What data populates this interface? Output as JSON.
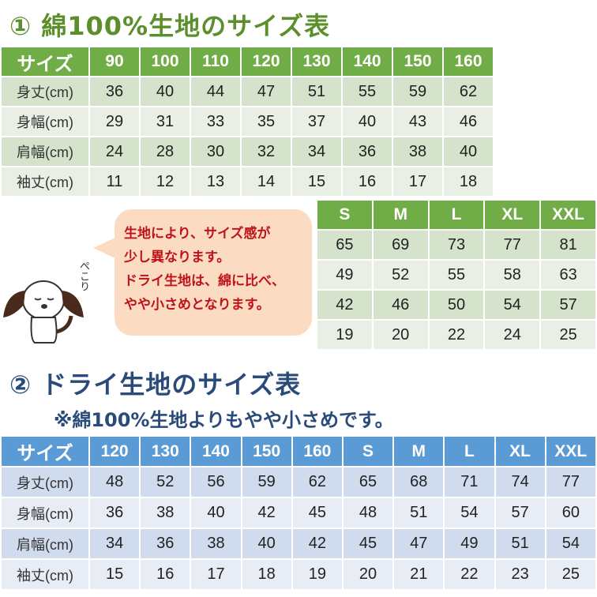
{
  "section1": {
    "title": "① 綿100%生地のサイズ表",
    "headers": [
      "サイズ",
      "90",
      "100",
      "110",
      "120",
      "130",
      "140",
      "150",
      "160"
    ],
    "rows": [
      [
        "身丈(cm)",
        "36",
        "40",
        "44",
        "47",
        "51",
        "55",
        "59",
        "62"
      ],
      [
        "身幅(cm)",
        "29",
        "31",
        "33",
        "35",
        "37",
        "40",
        "43",
        "46"
      ],
      [
        "肩幅(cm)",
        "24",
        "28",
        "30",
        "32",
        "34",
        "36",
        "38",
        "40"
      ],
      [
        "袖丈(cm)",
        "11",
        "12",
        "13",
        "14",
        "15",
        "16",
        "17",
        "18"
      ]
    ],
    "adult_headers": [
      "S",
      "M",
      "L",
      "XL",
      "XXL"
    ],
    "adult_rows": [
      [
        "65",
        "69",
        "73",
        "77",
        "81"
      ],
      [
        "49",
        "52",
        "55",
        "58",
        "63"
      ],
      [
        "42",
        "46",
        "50",
        "54",
        "57"
      ],
      [
        "19",
        "20",
        "22",
        "24",
        "25"
      ]
    ]
  },
  "bubble": {
    "line1": "生地により、サイズ感が",
    "line2": "少し異なります。",
    "line3": "ドライ生地は、綿に比べ、",
    "line4": "やや小さめとなります。"
  },
  "mascot": {
    "caption": "ぺこり"
  },
  "section2": {
    "title": "② ドライ生地のサイズ表",
    "note": "※綿100%生地よりもやや小さめです。",
    "headers": [
      "サイズ",
      "120",
      "130",
      "140",
      "150",
      "160",
      "S",
      "M",
      "L",
      "XL",
      "XXL"
    ],
    "rows": [
      [
        "身丈(cm)",
        "48",
        "52",
        "56",
        "59",
        "62",
        "65",
        "68",
        "71",
        "74",
        "77"
      ],
      [
        "身幅(cm)",
        "36",
        "38",
        "40",
        "42",
        "45",
        "48",
        "51",
        "54",
        "57",
        "60"
      ],
      [
        "肩幅(cm)",
        "34",
        "36",
        "38",
        "40",
        "42",
        "45",
        "47",
        "49",
        "51",
        "54"
      ],
      [
        "袖丈(cm)",
        "15",
        "16",
        "17",
        "18",
        "19",
        "20",
        "21",
        "22",
        "23",
        "25"
      ]
    ]
  },
  "colors": {
    "green_header": "#70ad47",
    "blue_header": "#5b9bd5",
    "bubble": "#fbdcc3",
    "bubble_text": "#c0121a"
  }
}
